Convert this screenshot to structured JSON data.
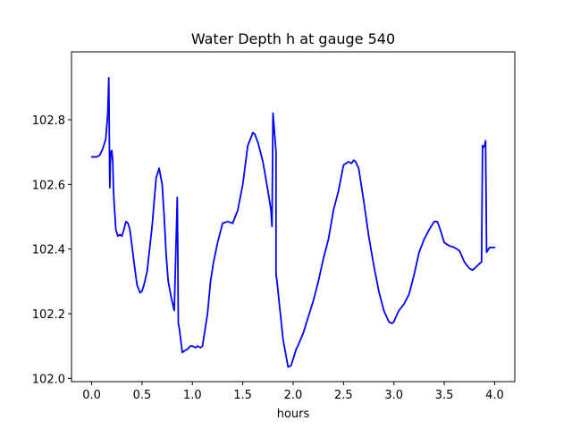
{
  "chart_data": {
    "type": "line",
    "title": "Water Depth h at gauge 540",
    "xlabel": "hours",
    "ylabel": "",
    "xlim": [
      -0.2,
      4.2
    ],
    "ylim": [
      101.99,
      103.01
    ],
    "xticks": [
      0.0,
      0.5,
      1.0,
      1.5,
      2.0,
      2.5,
      3.0,
      3.5,
      4.0
    ],
    "xtick_labels": [
      "0.0",
      "0.5",
      "1.0",
      "1.5",
      "2.0",
      "2.5",
      "3.0",
      "3.5",
      "4.0"
    ],
    "yticks": [
      102.0,
      102.2,
      102.4,
      102.6,
      102.8
    ],
    "ytick_labels": [
      "102.0",
      "102.2",
      "102.4",
      "102.6",
      "102.8"
    ],
    "grid": false,
    "series": [
      {
        "color": "#0000ff",
        "x": [
          0.0,
          0.05,
          0.08,
          0.11,
          0.14,
          0.16,
          0.17,
          0.18,
          0.185,
          0.19,
          0.2,
          0.21,
          0.215,
          0.22,
          0.24,
          0.26,
          0.28,
          0.3,
          0.32,
          0.34,
          0.36,
          0.38,
          0.4,
          0.42,
          0.45,
          0.48,
          0.5,
          0.52,
          0.55,
          0.6,
          0.64,
          0.67,
          0.7,
          0.72,
          0.74,
          0.76,
          0.79,
          0.82,
          0.85,
          0.855,
          0.86,
          0.87,
          0.9,
          0.92,
          0.95,
          0.98,
          1.0,
          1.03,
          1.05,
          1.08,
          1.1,
          1.13,
          1.15,
          1.18,
          1.21,
          1.25,
          1.3,
          1.35,
          1.4,
          1.45,
          1.5,
          1.55,
          1.6,
          1.62,
          1.65,
          1.7,
          1.75,
          1.78,
          1.79,
          1.8,
          1.83,
          1.83,
          1.84,
          1.86,
          1.9,
          1.95,
          1.98,
          2.0,
          2.03,
          2.06,
          2.1,
          2.15,
          2.2,
          2.25,
          2.3,
          2.35,
          2.4,
          2.45,
          2.5,
          2.55,
          2.58,
          2.6,
          2.62,
          2.65,
          2.7,
          2.75,
          2.8,
          2.85,
          2.9,
          2.95,
          2.98,
          3.0,
          3.02,
          3.05,
          3.1,
          3.15,
          3.2,
          3.25,
          3.3,
          3.35,
          3.4,
          3.43,
          3.45,
          3.48,
          3.5,
          3.55,
          3.6,
          3.65,
          3.7,
          3.75,
          3.78,
          3.8,
          3.85,
          3.87,
          3.88,
          3.89,
          3.9,
          3.91,
          3.92,
          3.93,
          3.95,
          4.0
        ],
        "y": [
          102.685,
          102.685,
          102.69,
          102.71,
          102.74,
          102.82,
          102.93,
          102.59,
          102.66,
          102.7,
          102.705,
          102.67,
          102.6,
          102.56,
          102.46,
          102.44,
          102.445,
          102.44,
          102.46,
          102.485,
          102.48,
          102.46,
          102.41,
          102.36,
          102.29,
          102.265,
          102.27,
          102.29,
          102.33,
          102.47,
          102.62,
          102.65,
          102.6,
          102.5,
          102.38,
          102.3,
          102.25,
          102.21,
          102.56,
          102.4,
          102.17,
          102.155,
          102.08,
          102.085,
          102.09,
          102.1,
          102.1,
          102.095,
          102.1,
          102.095,
          102.1,
          102.16,
          102.2,
          102.3,
          102.36,
          102.42,
          102.48,
          102.485,
          102.48,
          102.52,
          102.6,
          102.72,
          102.76,
          102.755,
          102.73,
          102.67,
          102.58,
          102.52,
          102.47,
          102.82,
          102.7,
          102.32,
          102.3,
          102.24,
          102.12,
          102.035,
          102.04,
          102.06,
          102.09,
          102.11,
          102.14,
          102.19,
          102.24,
          102.3,
          102.37,
          102.43,
          102.52,
          102.58,
          102.66,
          102.67,
          102.665,
          102.675,
          102.67,
          102.65,
          102.55,
          102.44,
          102.35,
          102.27,
          102.21,
          102.175,
          102.17,
          102.175,
          102.19,
          102.21,
          102.23,
          102.26,
          102.32,
          102.39,
          102.43,
          102.46,
          102.485,
          102.485,
          102.47,
          102.44,
          102.42,
          102.41,
          102.405,
          102.395,
          102.36,
          102.34,
          102.335,
          102.34,
          102.355,
          102.36,
          102.72,
          102.715,
          102.72,
          102.735,
          102.39,
          102.395,
          102.405,
          102.405
        ]
      }
    ]
  }
}
